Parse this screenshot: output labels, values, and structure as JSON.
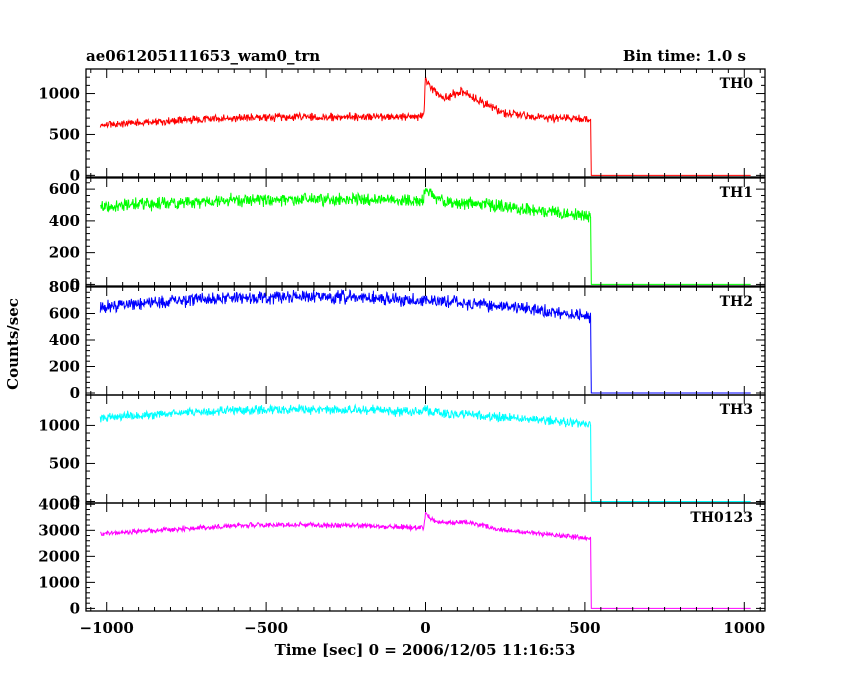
{
  "chart_data": {
    "type": "line",
    "title": "ae061205111653_wam0_trn",
    "subtitle": "Bin time: 1.0 s",
    "xlabel": "Time [sec] 0 = 2006/12/05 11:16:53",
    "ylabel": "Counts/sec",
    "xlim": [
      -1065,
      1065
    ],
    "x_ticks": [
      -1000,
      -500,
      0,
      500,
      1000
    ],
    "x_tick_labels": [
      "−1000",
      "−500",
      "0",
      "500",
      "1000"
    ],
    "grid": false,
    "panels": [
      {
        "name": "TH0",
        "color": "#ff0000",
        "ylim": [
          -20,
          1300
        ],
        "y_ticks": [
          0,
          500,
          1000
        ],
        "y_tick_labels": [
          "0",
          "500",
          "1000"
        ],
        "x": [
          -1020,
          -900,
          -800,
          -700,
          -600,
          -500,
          -400,
          -300,
          -200,
          -100,
          -5,
          0,
          10,
          30,
          60,
          90,
          120,
          150,
          200,
          250,
          300,
          400,
          500,
          518,
          520,
          1020
        ],
        "y": [
          620,
          645,
          665,
          685,
          700,
          708,
          712,
          714,
          714,
          712,
          715,
          1200,
          1120,
          1000,
          930,
          1000,
          1020,
          960,
          850,
          760,
          730,
          700,
          690,
          690,
          0,
          0
        ]
      },
      {
        "name": "TH1",
        "color": "#00ff00",
        "ylim": [
          -10,
          670
        ],
        "y_ticks": [
          0,
          200,
          400,
          600
        ],
        "y_tick_labels": [
          "0",
          "200",
          "400",
          "600"
        ],
        "x": [
          -1020,
          -800,
          -600,
          -400,
          -200,
          -10,
          0,
          15,
          60,
          200,
          300,
          400,
          500,
          518,
          520,
          1020
        ],
        "y": [
          490,
          515,
          530,
          535,
          535,
          525,
          600,
          575,
          525,
          500,
          475,
          455,
          430,
          425,
          0,
          0
        ]
      },
      {
        "name": "TH2",
        "color": "#0000ff",
        "ylim": [
          -15,
          800
        ],
        "y_ticks": [
          0,
          200,
          400,
          600,
          800
        ],
        "y_tick_labels": [
          "0",
          "200",
          "400",
          "600",
          "800"
        ],
        "x": [
          -1020,
          -800,
          -600,
          -400,
          -200,
          0,
          100,
          200,
          300,
          400,
          500,
          518,
          520,
          1020
        ],
        "y": [
          650,
          690,
          715,
          725,
          720,
          695,
          685,
          660,
          640,
          610,
          580,
          570,
          0,
          0
        ]
      },
      {
        "name": "TH3",
        "color": "#00ffff",
        "ylim": [
          -20,
          1400
        ],
        "y_ticks": [
          0,
          500,
          1000
        ],
        "y_tick_labels": [
          "0",
          "500",
          "1000"
        ],
        "x": [
          -1020,
          -800,
          -600,
          -400,
          -200,
          -10,
          0,
          10,
          100,
          200,
          300,
          400,
          500,
          518,
          520,
          1020
        ],
        "y": [
          1100,
          1160,
          1200,
          1210,
          1205,
          1170,
          1240,
          1180,
          1150,
          1120,
          1090,
          1060,
          1020,
          1010,
          0,
          0
        ]
      },
      {
        "name": "TH0123",
        "color": "#ff00ff",
        "ylim": [
          -100,
          4050
        ],
        "y_ticks": [
          0,
          1000,
          2000,
          3000,
          4000
        ],
        "y_tick_labels": [
          "0",
          "1000",
          "2000",
          "3000",
          "4000"
        ],
        "x": [
          -1020,
          -900,
          -800,
          -700,
          -600,
          -500,
          -400,
          -300,
          -200,
          -100,
          -5,
          0,
          15,
          40,
          80,
          120,
          160,
          200,
          260,
          300,
          400,
          500,
          518,
          520,
          1020
        ],
        "y": [
          2870,
          2960,
          3040,
          3110,
          3170,
          3200,
          3210,
          3200,
          3180,
          3140,
          3100,
          3700,
          3450,
          3300,
          3280,
          3340,
          3250,
          3120,
          2980,
          2950,
          2830,
          2700,
          2680,
          0,
          0
        ]
      }
    ]
  }
}
